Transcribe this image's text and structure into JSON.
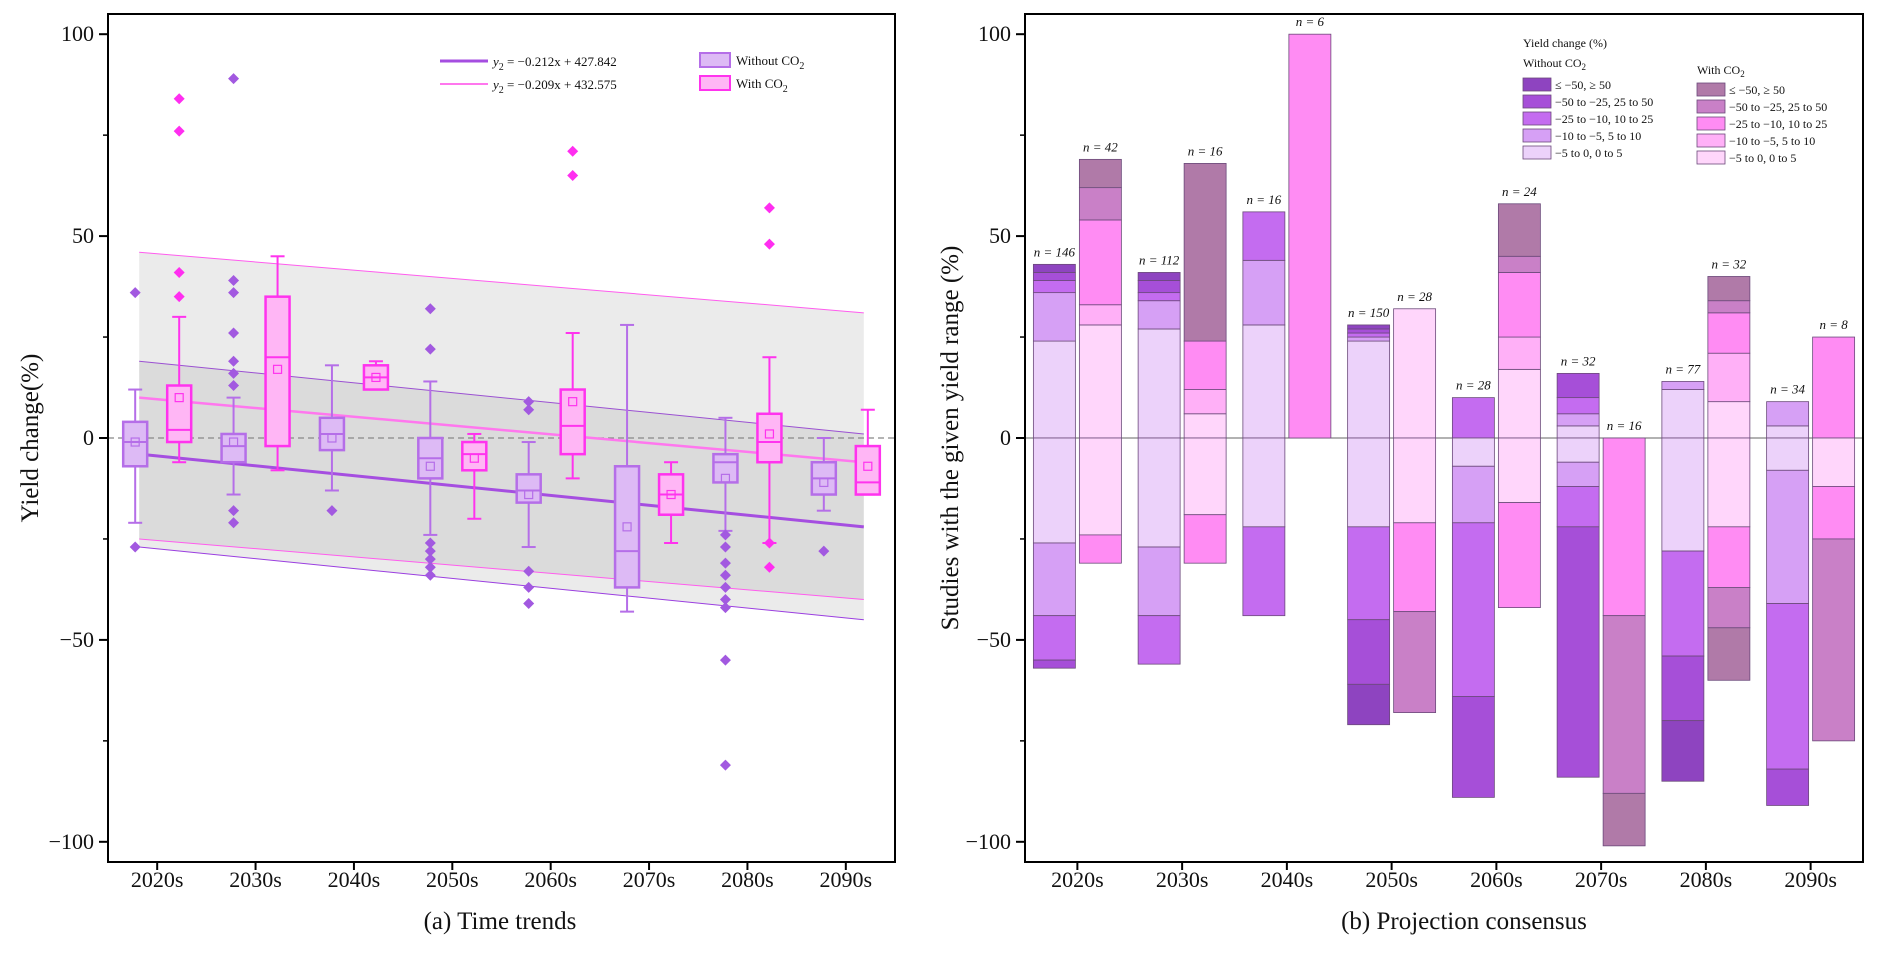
{
  "chart_data": [
    {
      "type": "box",
      "caption": "(a) Time trends",
      "ylabel": "Yield change(%)",
      "ylim": [
        -105,
        105
      ],
      "yticks": [
        -100,
        -50,
        0,
        50,
        100
      ],
      "ytick_labels": [
        "−100",
        "−50",
        "0",
        "50",
        "100"
      ],
      "categories": [
        "2020s",
        "2030s",
        "2040s",
        "2050s",
        "2060s",
        "2070s",
        "2080s",
        "2090s"
      ],
      "series": [
        {
          "name": "Without CO2",
          "color": "#b56ee8",
          "fill": "#ddbaf5",
          "boxes": [
            {
              "q1": -7,
              "median": -1,
              "q3": 4,
              "wlo": -21,
              "whi": 12,
              "mean": -1,
              "outliers": [
                36,
                -27
              ]
            },
            {
              "q1": -6,
              "median": -2,
              "q3": 1,
              "wlo": -14,
              "whi": 10,
              "mean": -1,
              "outliers": [
                89,
                39,
                36,
                26,
                19,
                16,
                13,
                -18,
                -21
              ]
            },
            {
              "q1": -3,
              "median": 1,
              "q3": 5,
              "wlo": -13,
              "whi": 18,
              "mean": 0,
              "outliers": [
                -18
              ]
            },
            {
              "q1": -10,
              "median": -5,
              "q3": 0,
              "wlo": -24,
              "whi": 14,
              "mean": -7,
              "outliers": [
                32,
                22,
                -26,
                -28,
                -30,
                -32,
                -34
              ]
            },
            {
              "q1": -16,
              "median": -13,
              "q3": -9,
              "wlo": -27,
              "whi": -1,
              "mean": -14,
              "outliers": [
                9,
                7,
                -33,
                -37,
                -41
              ]
            },
            {
              "q1": -37,
              "median": -28,
              "q3": -7,
              "wlo": -43,
              "whi": 28,
              "mean": -22,
              "outliers": []
            },
            {
              "q1": -11,
              "median": -6,
              "q3": -4,
              "wlo": -23,
              "whi": 5,
              "mean": -10,
              "outliers": [
                -24,
                -27,
                -31,
                -34,
                -37,
                -40,
                -42,
                -55,
                -81
              ]
            },
            {
              "q1": -14,
              "median": -10,
              "q3": -6,
              "wlo": -18,
              "whi": 0,
              "mean": -11,
              "outliers": [
                -28
              ]
            }
          ]
        },
        {
          "name": "With CO2",
          "color": "#ff33ee",
          "fill": "#ffb6f5",
          "boxes": [
            {
              "q1": -1,
              "median": 2,
              "q3": 13,
              "wlo": -6,
              "whi": 30,
              "mean": 10,
              "outliers": [
                84,
                76,
                41,
                35
              ]
            },
            {
              "q1": -2,
              "median": 20,
              "q3": 35,
              "wlo": -8,
              "whi": 45,
              "mean": 17,
              "outliers": []
            },
            {
              "q1": 12,
              "median": 15,
              "q3": 18,
              "wlo": 12,
              "whi": 19,
              "mean": 15,
              "outliers": []
            },
            {
              "q1": -8,
              "median": -4,
              "q3": -1,
              "wlo": -20,
              "whi": 1,
              "mean": -5,
              "outliers": []
            },
            {
              "q1": -4,
              "median": 3,
              "q3": 12,
              "wlo": -10,
              "whi": 26,
              "mean": 9,
              "outliers": [
                71,
                65
              ]
            },
            {
              "q1": -19,
              "median": -14,
              "q3": -9,
              "wlo": -26,
              "whi": -6,
              "mean": -14,
              "outliers": []
            },
            {
              "q1": -6,
              "median": -1,
              "q3": 6,
              "wlo": -26,
              "whi": 20,
              "mean": 1,
              "outliers": [
                57,
                48,
                -26,
                -32
              ]
            },
            {
              "q1": -14,
              "median": -11,
              "q3": -2,
              "wlo": -14,
              "whi": 7,
              "mean": -7,
              "outliers": []
            }
          ]
        }
      ],
      "trend_lines": [
        {
          "series": "Without CO2",
          "slope": -0.212,
          "intercept": 427.842,
          "label_lhs": "y",
          "label_sub": "2",
          "label_rhs": " = −0.212x + 427.842",
          "y_start": -4,
          "y_end": -22,
          "color": "#a54ee0"
        },
        {
          "series": "With CO2",
          "slope": -0.209,
          "intercept": 432.575,
          "label_lhs": "y",
          "label_sub": "2",
          "label_rhs": " = −0.209x + 432.575",
          "y_start": 10,
          "y_end": -6,
          "color": "#ff77ee"
        }
      ],
      "bands": [
        {
          "series": "Without CO2",
          "lower_start": -27,
          "lower_end": -45,
          "upper_start": 19,
          "upper_end": 1,
          "color": "#9b3ee0"
        },
        {
          "series": "With CO2",
          "lower_start": -25,
          "lower_end": -40,
          "upper_start": 46,
          "upper_end": 31,
          "color": "#ff5cee"
        }
      ],
      "legend": {
        "position": "top-right",
        "items": [
          {
            "label_main": "Without CO",
            "label_sub": "2",
            "color": "#b56ee8",
            "fill": "#ddbaf5"
          },
          {
            "label_main": "With CO",
            "label_sub": "2",
            "color": "#ff33ee",
            "fill": "#ffb6f5"
          }
        ]
      }
    },
    {
      "type": "stacked_bar",
      "caption": "(b) Projection consensus",
      "ylabel": "Studies with the given yield range (%)",
      "ylim": [
        -105,
        105
      ],
      "yticks": [
        -100,
        -50,
        0,
        50,
        100
      ],
      "ytick_labels": [
        "−100",
        "−50",
        "0",
        "50",
        "100"
      ],
      "categories": [
        "2020s",
        "2030s",
        "2040s",
        "2050s",
        "2060s",
        "2070s",
        "2080s",
        "2090s"
      ],
      "legend": {
        "title": "Yield change (%)",
        "groups": [
          {
            "title_main": "Without CO",
            "title_sub": "2",
            "items": [
              {
                "label": "≤ −50, ≥ 50",
                "color": "#8e44c0"
              },
              {
                "label": "−50 to −25, 25 to 50",
                "color": "#a64fd8"
              },
              {
                "label": "−25 to −10, 10 to 25",
                "color": "#c46cf0"
              },
              {
                "label": "−10 to −5, 5 to 10",
                "color": "#d6a0f5"
              },
              {
                "label": "−5 to 0, 0 to 5",
                "color": "#ecd2fa"
              }
            ]
          },
          {
            "title_main": "With CO",
            "title_sub": "2",
            "items": [
              {
                "label": "≤ −50, ≥ 50",
                "color": "#b07aa8"
              },
              {
                "label": "−50 to −25, 25 to 50",
                "color": "#c980c7"
              },
              {
                "label": "−25 to −10, 10 to 25",
                "color": "#ff8cf3"
              },
              {
                "label": "−10 to −5, 5 to 10",
                "color": "#ffb0f7"
              },
              {
                "label": "−5 to 0, 0 to 5",
                "color": "#ffd6fb"
              }
            ]
          }
        ]
      },
      "series": [
        {
          "name": "Without CO2",
          "n_labels": [
            "n = 146",
            "n = 112",
            "n = 16",
            "n = 150",
            "n = 28",
            "n = 32",
            "n = 77",
            "n = 34"
          ],
          "positive": [
            [
              24,
              12,
              3,
              2,
              2
            ],
            [
              27,
              7,
              2,
              3,
              2
            ],
            [
              28,
              16,
              12,
              0,
              0
            ],
            [
              24,
              1,
              1,
              1,
              1
            ],
            [
              0,
              0,
              10,
              0,
              0
            ],
            [
              3,
              3,
              4,
              6,
              0
            ],
            [
              12,
              2,
              0,
              0,
              0
            ],
            [
              3,
              6,
              0,
              0,
              0
            ]
          ],
          "negative": [
            [
              26,
              18,
              11,
              2,
              0
            ],
            [
              27,
              17,
              12,
              0,
              0
            ],
            [
              22,
              0,
              22,
              0,
              0
            ],
            [
              22,
              0,
              23,
              16,
              10
            ],
            [
              7,
              14,
              43,
              25,
              0
            ],
            [
              6,
              6,
              10,
              62,
              0
            ],
            [
              28,
              0,
              26,
              16,
              15
            ],
            [
              8,
              33,
              41,
              9,
              0
            ]
          ]
        },
        {
          "name": "With CO2",
          "n_labels": [
            "n = 42",
            "n = 16",
            "n = 6",
            "n = 28",
            "n = 24",
            "n = 16",
            "n = 32",
            "n = 8"
          ],
          "positive": [
            [
              28,
              5,
              21,
              8,
              7
            ],
            [
              6,
              6,
              12,
              0,
              44
            ],
            [
              0,
              0,
              100,
              0,
              0
            ],
            [
              32,
              0,
              0,
              0,
              0
            ],
            [
              17,
              8,
              16,
              4,
              13
            ],
            [
              0,
              0,
              0,
              0,
              0
            ],
            [
              9,
              12,
              10,
              3,
              6
            ],
            [
              0,
              0,
              25,
              0,
              0
            ]
          ],
          "negative": [
            [
              24,
              0,
              7,
              0,
              0
            ],
            [
              19,
              0,
              12,
              0,
              0
            ],
            [
              0,
              0,
              0,
              0,
              0
            ],
            [
              21,
              0,
              22,
              25,
              0
            ],
            [
              16,
              0,
              26,
              0,
              0
            ],
            [
              0,
              0,
              44,
              44,
              13
            ],
            [
              22,
              0,
              15,
              10,
              13
            ],
            [
              12,
              0,
              13,
              50,
              0
            ]
          ]
        }
      ]
    }
  ]
}
